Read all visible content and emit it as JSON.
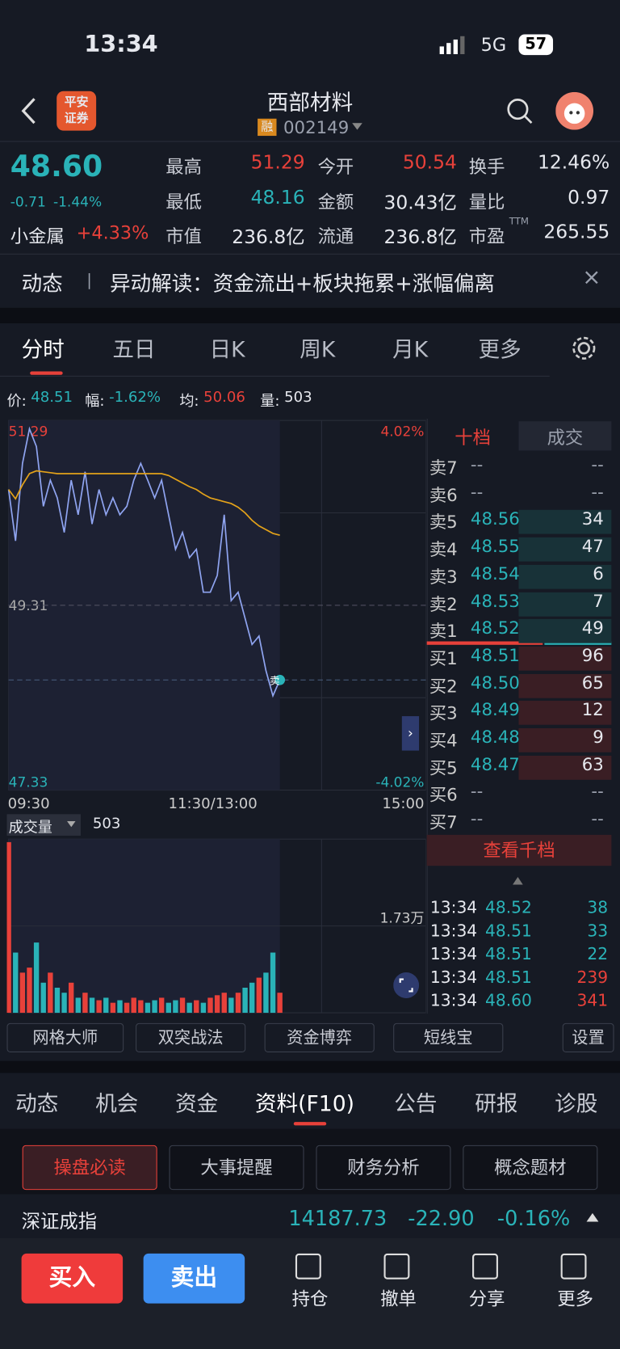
{
  "status": {
    "time": "13:34",
    "network": "5G",
    "battery": "57"
  },
  "header": {
    "logo": [
      "平安",
      "证券"
    ],
    "title": "西部材料",
    "tag": "融",
    "code": "002149"
  },
  "quote": {
    "price": "48.60",
    "change": "-0.71",
    "change_pct": "-1.44%",
    "sector": "小金属",
    "sector_pct": "+4.33%",
    "stats": [
      [
        "最高",
        "51.29"
      ],
      [
        "今开",
        "50.54"
      ],
      [
        "换手",
        "12.46%"
      ],
      [
        "最低",
        "48.16"
      ],
      [
        "金额",
        "30.43亿"
      ],
      [
        "量比",
        "0.97"
      ],
      [
        "市值",
        "236.8亿"
      ],
      [
        "流通",
        "236.8亿"
      ],
      [
        "市盈",
        "265.55"
      ]
    ],
    "ttm": "TTM"
  },
  "news": {
    "label": "动态",
    "text": "异动解读：资金流出+板块拖累+涨幅偏离"
  },
  "chart_tabs": [
    "分时",
    "五日",
    "日K",
    "周K",
    "月K",
    "更多"
  ],
  "chart_info": [
    [
      "价:",
      "48.51"
    ],
    [
      "幅:",
      "-1.62%"
    ],
    [
      "均:",
      "50.06"
    ],
    [
      "量:",
      "503"
    ]
  ],
  "chart_data": [
    {
      "type": "line",
      "x_labels": [
        "09:30",
        "11:30/13:00",
        "15:00"
      ],
      "ylim": [
        47.33,
        51.29
      ],
      "yticks": [
        51.29,
        49.31,
        47.33
      ],
      "y2lim": [
        -4.02,
        4.02
      ],
      "y2ticks": [
        {
          "value": 4.02,
          "label": "4.02%"
        },
        {
          "value": -4.02,
          "label": "-4.02%"
        }
      ],
      "annotation": "卖",
      "series": [
        {
          "color": "#8fa4f0",
          "values": [
            50.55,
            50.0,
            50.83,
            51.2,
            51.01,
            50.37,
            50.65,
            50.46,
            50.09,
            50.65,
            50.28,
            50.74,
            50.18,
            50.55,
            50.28,
            50.46,
            50.28,
            50.37,
            50.65,
            50.83,
            50.65,
            50.46,
            50.65,
            50.28,
            49.91,
            50.09,
            49.82,
            49.91,
            49.45,
            49.45,
            49.63,
            50.28,
            49.36,
            49.45,
            49.17,
            48.89,
            48.98,
            48.61,
            48.34,
            48.51
          ]
        },
        {
          "color": "#e3a21a",
          "values": [
            50.55,
            50.45,
            50.6,
            50.72,
            50.75,
            50.74,
            50.73,
            50.72,
            50.72,
            50.72,
            50.72,
            50.72,
            50.72,
            50.72,
            50.72,
            50.72,
            50.72,
            50.72,
            50.72,
            50.72,
            50.72,
            50.72,
            50.72,
            50.7,
            50.66,
            50.62,
            50.58,
            50.55,
            50.5,
            50.46,
            50.44,
            50.42,
            50.4,
            50.36,
            50.3,
            50.22,
            50.16,
            50.12,
            50.08,
            50.06
          ]
        }
      ]
    },
    {
      "type": "bar",
      "label": "成交量",
      "current": "503",
      "ylim": [
        0,
        34600
      ],
      "yticks": [
        {
          "value": 17300,
          "label": "1.73万"
        }
      ],
      "up_color": "#e8413a",
      "down_color": "#2ab3b8",
      "values": [
        34000,
        12000,
        8000,
        9000,
        14000,
        6000,
        8000,
        5000,
        4000,
        6000,
        3000,
        4000,
        3000,
        2500,
        3000,
        2000,
        2500,
        2000,
        3000,
        2500,
        2000,
        2500,
        3000,
        2000,
        2500,
        3000,
        2000,
        2500,
        2000,
        3000,
        3500,
        4000,
        3000,
        4000,
        5000,
        6000,
        7000,
        8000,
        12000,
        4000
      ]
    }
  ],
  "order_book": {
    "tabs": [
      "十档",
      "成交"
    ],
    "rows": [
      [
        "卖7",
        "--",
        "--"
      ],
      [
        "卖6",
        "--",
        "--"
      ],
      [
        "卖5",
        "48.56",
        "34"
      ],
      [
        "卖4",
        "48.55",
        "47"
      ],
      [
        "卖3",
        "48.54",
        "6"
      ],
      [
        "卖2",
        "48.53",
        "7"
      ],
      [
        "卖1",
        "48.52",
        "49"
      ],
      [
        "买1",
        "48.51",
        "96"
      ],
      [
        "买2",
        "48.50",
        "65"
      ],
      [
        "买3",
        "48.49",
        "12"
      ],
      [
        "买4",
        "48.48",
        "9"
      ],
      [
        "买5",
        "48.47",
        "63"
      ],
      [
        "买6",
        "--",
        "--"
      ],
      [
        "买7",
        "--",
        "--"
      ]
    ],
    "more": "查看千档"
  },
  "trades": [
    [
      "13:34",
      "48.52",
      "38"
    ],
    [
      "13:34",
      "48.51",
      "33"
    ],
    [
      "13:34",
      "48.51",
      "22"
    ],
    [
      "13:34",
      "48.51",
      "239"
    ],
    [
      "13:34",
      "48.60",
      "341"
    ]
  ],
  "tools": [
    "网格大师",
    "双突战法",
    "资金博弈",
    "短线宝",
    "设置"
  ],
  "detail_tabs": [
    "动态",
    "机会",
    "资金",
    "资料(F10)",
    "公告",
    "研报",
    "诊股"
  ],
  "sub_tabs": [
    "操盘必读",
    "大事提醒",
    "财务分析",
    "概念题材"
  ],
  "index": {
    "name": "深证成指",
    "value": "14187.73",
    "change": "-22.90",
    "change_pct": "-0.16%"
  },
  "actions": {
    "buy": "买入",
    "sell": "卖出",
    "items": [
      "持仓",
      "撤单",
      "分享",
      "更多"
    ]
  }
}
